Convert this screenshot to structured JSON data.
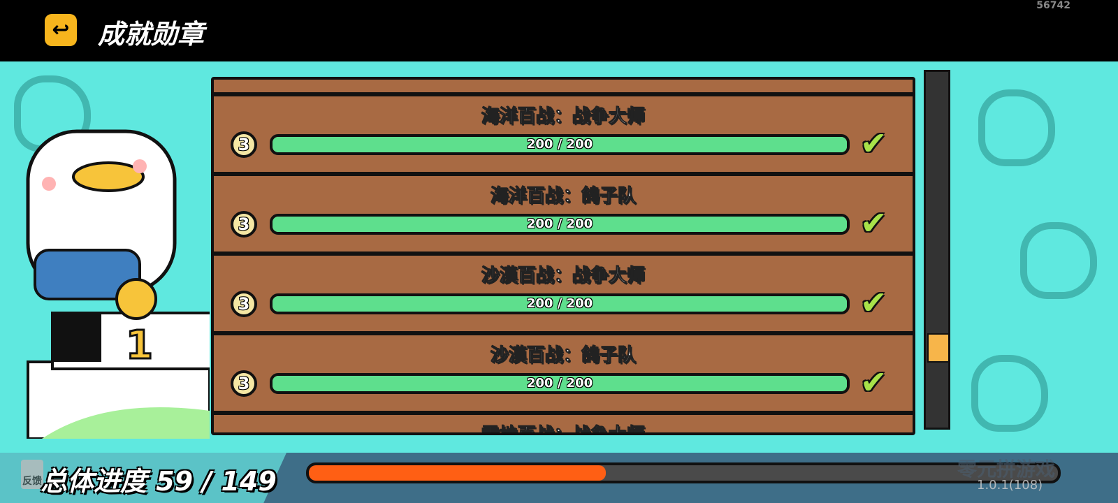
{
  "header": {
    "title": "成就勋章",
    "back_icon": "back-arrow-icon",
    "build_number": "56742"
  },
  "achievements": [
    {
      "title": "海洋百战：战争大师",
      "level": "3",
      "progress_text": "200 / 200",
      "progress": 1.0,
      "completed": true
    },
    {
      "title": "海洋百战：鸽子队",
      "level": "3",
      "progress_text": "200 / 200",
      "progress": 1.0,
      "completed": true
    },
    {
      "title": "沙漠百战：战争大师",
      "level": "3",
      "progress_text": "200 / 200",
      "progress": 1.0,
      "completed": true
    },
    {
      "title": "沙漠百战：鸽子队",
      "level": "3",
      "progress_text": "200 / 200",
      "progress": 1.0,
      "completed": true
    },
    {
      "title": "雪地百战：战争大师"
    }
  ],
  "scroll": {
    "position": 0.8
  },
  "footer": {
    "feedback_label": "反馈",
    "overall_label": "总体进度 59 / 149",
    "overall_progress": 0.396,
    "version": "1.0.1(108)",
    "watermark": "零元拼游戏"
  },
  "colors": {
    "bar_green": "#5edf8d",
    "overall_orange": "#ff5f14",
    "panel_brown": "#a86a43",
    "bg_teal": "#5fe8df"
  }
}
